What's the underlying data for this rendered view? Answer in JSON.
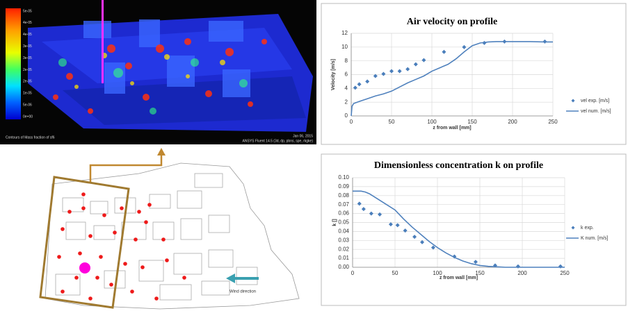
{
  "cfd_image": {
    "caption": "Contours of Mass fraction of sf6",
    "date": "Jan 06, 2015",
    "software": "ANSYS Fluent 14.5 (3d, dp, pbns, spe, rkgke)",
    "colorbar_labels": [
      "5e-05",
      "4e-05",
      "4e-05",
      "3e-05",
      "3e-05",
      "2e-05",
      "2e-05",
      "1e-05",
      "5e-06",
      "0e+00"
    ]
  },
  "site_map": {
    "wind_label": "Wind direction"
  },
  "chart_data": [
    {
      "type": "line",
      "title": "Air velocity on profile",
      "x_label": "z from wall [mm]",
      "y_label": "Velocity [m/s]",
      "xlim": [
        0,
        250
      ],
      "xticks": [
        0,
        50,
        100,
        150,
        200,
        250
      ],
      "ylim": [
        0,
        12
      ],
      "yticks": [
        0,
        2,
        4,
        6,
        8,
        10,
        12
      ],
      "grid": true,
      "series": [
        {
          "name": "vel exp. [m/s]",
          "mode": "markers",
          "color": "#4a7ebb",
          "x": [
            5,
            10,
            20,
            30,
            40,
            50,
            60,
            70,
            80,
            90,
            115,
            140,
            165,
            190,
            240
          ],
          "values": [
            4.1,
            4.6,
            5.0,
            5.8,
            6.1,
            6.5,
            6.5,
            6.8,
            7.5,
            8.1,
            9.3,
            10.0,
            10.6,
            10.8,
            10.8
          ]
        },
        {
          "name": "vel num. [m/s]",
          "mode": "line",
          "color": "#4f81bd",
          "x": [
            0,
            1,
            3,
            10,
            20,
            30,
            40,
            50,
            60,
            70,
            80,
            90,
            100,
            110,
            120,
            130,
            140,
            150,
            160,
            170,
            180,
            190,
            200,
            220,
            240,
            250
          ],
          "values": [
            0,
            1.4,
            1.8,
            2.1,
            2.5,
            2.9,
            3.2,
            3.6,
            4.2,
            4.8,
            5.3,
            5.8,
            6.5,
            7.0,
            7.5,
            8.3,
            9.3,
            10.2,
            10.6,
            10.75,
            10.8,
            10.8,
            10.8,
            10.8,
            10.75,
            10.75
          ]
        }
      ]
    },
    {
      "type": "line",
      "title": "Dimensionless concentration k on profile",
      "x_label": "z from wall [mm]",
      "y_label": "k []",
      "xlim": [
        0,
        250
      ],
      "xticks": [
        0,
        50,
        100,
        150,
        200,
        250
      ],
      "ylim": [
        0,
        0.1
      ],
      "yticks": [
        {
          "value": 0,
          "label": "0.00"
        },
        {
          "value": 0.01,
          "label": "0.01"
        },
        {
          "value": 0.02,
          "label": "0.02"
        },
        {
          "value": 0.03,
          "label": "0.03"
        },
        {
          "value": 0.04,
          "label": "0.04"
        },
        {
          "value": 0.05,
          "label": "0.05"
        },
        {
          "value": 0.06,
          "label": "0.06"
        },
        {
          "value": 0.07,
          "label": "0.07"
        },
        {
          "value": 0.08,
          "label": "0.08"
        },
        {
          "value": 0.09,
          "label": "0.09"
        },
        {
          "value": 0.1,
          "label": "0.10"
        }
      ],
      "grid": true,
      "series": [
        {
          "name": "k exp.",
          "mode": "markers",
          "color": "#4a7ebb",
          "x": [
            8,
            13,
            22,
            32,
            45,
            53,
            62,
            73,
            82,
            95,
            120,
            145,
            168,
            195,
            245
          ],
          "values": [
            0.071,
            0.065,
            0.06,
            0.059,
            0.048,
            0.047,
            0.041,
            0.034,
            0.028,
            0.022,
            0.012,
            0.006,
            0.002,
            0.001,
            0.001
          ]
        },
        {
          "name": "K num. [m/s]",
          "mode": "line",
          "color": "#4f81bd",
          "x": [
            0,
            5,
            10,
            15,
            20,
            30,
            40,
            50,
            60,
            70,
            80,
            90,
            100,
            110,
            120,
            130,
            140,
            150,
            160,
            170,
            180,
            200,
            220,
            250
          ],
          "values": [
            0.085,
            0.085,
            0.085,
            0.084,
            0.082,
            0.076,
            0.07,
            0.064,
            0.054,
            0.045,
            0.037,
            0.029,
            0.022,
            0.016,
            0.011,
            0.007,
            0.004,
            0.002,
            0.001,
            0.0005,
            0,
            0,
            0,
            0
          ]
        }
      ]
    }
  ]
}
